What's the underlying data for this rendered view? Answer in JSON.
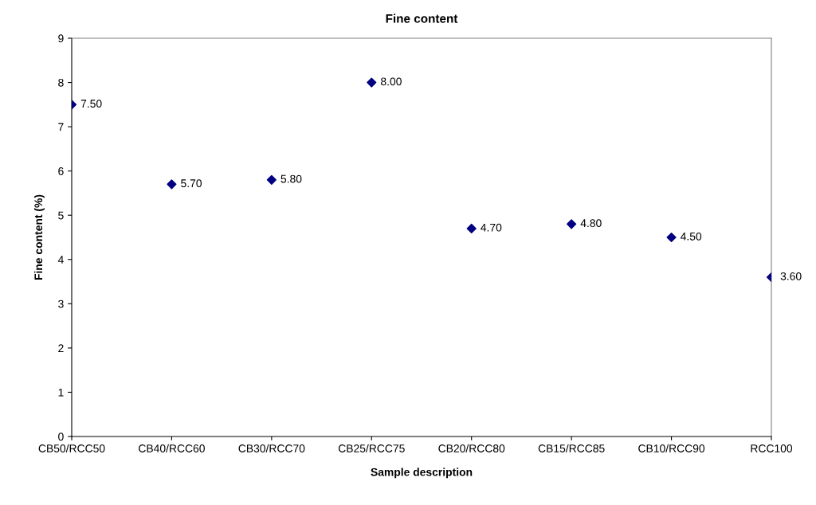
{
  "chart_data": {
    "type": "scatter",
    "title": "Fine content",
    "xlabel": "Sample description",
    "ylabel": "Fine content (%)",
    "categories": [
      "CB50/RCC50",
      "CB40/RCC60",
      "CB30/RCC70",
      "CB25/RCC75",
      "CB20/RCC80",
      "CB15/RCC85",
      "CB10/RCC90",
      "RCC100"
    ],
    "values": [
      7.5,
      5.7,
      5.8,
      8.0,
      4.7,
      4.8,
      4.5,
      3.6
    ],
    "value_labels": [
      "7.50",
      "5.70",
      "5.80",
      "8.00",
      "4.70",
      "4.80",
      "4.50",
      "3.60"
    ],
    "color": "#000080",
    "marker": "diamond",
    "ylim": [
      0,
      9
    ],
    "yticks": [
      0,
      1,
      2,
      3,
      4,
      5,
      6,
      7,
      8,
      9
    ],
    "grid": false,
    "legend": false
  }
}
